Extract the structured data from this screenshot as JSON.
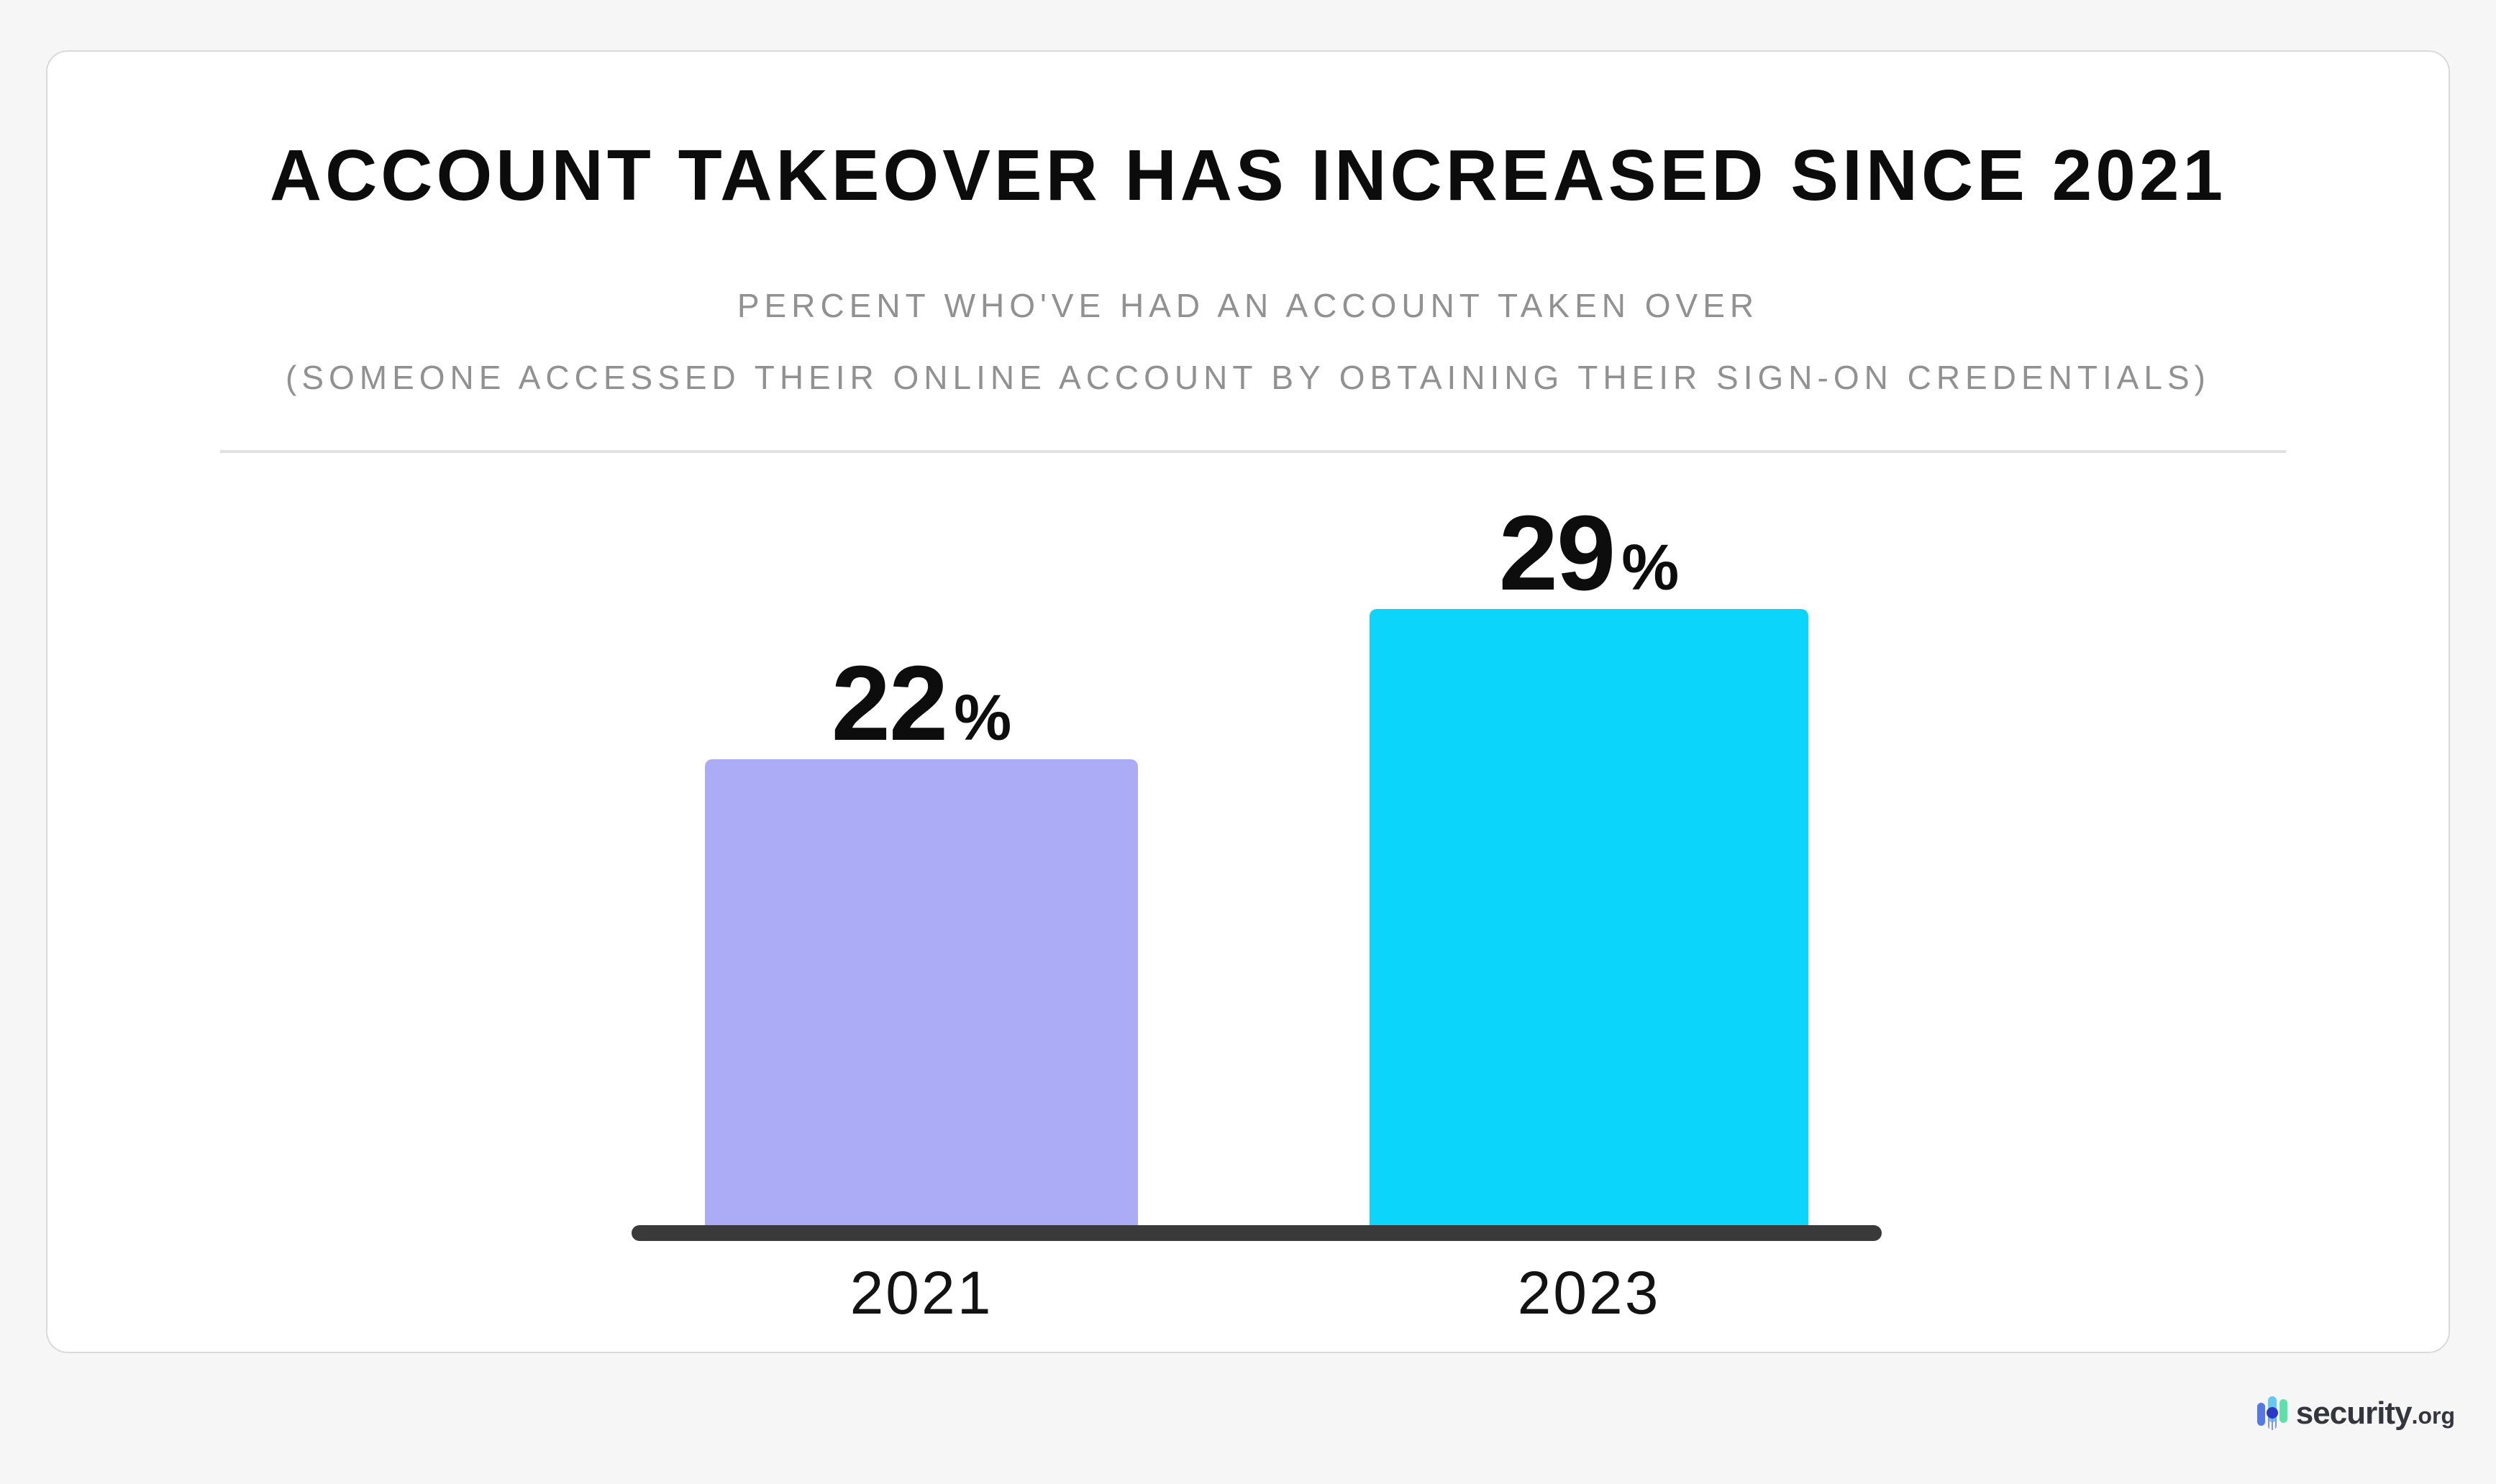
{
  "chart_data": {
    "type": "bar",
    "title": "ACCOUNT TAKEOVER HAS INCREASED SINCE 2021",
    "subtitle_line1": "PERCENT WHO'VE HAD AN ACCOUNT TAKEN OVER",
    "subtitle_line2": "(SOMEONE ACCESSED THEIR ONLINE ACCOUNT BY OBTAINING THEIR SIGN-ON CREDENTIALS)",
    "categories": [
      "2021",
      "2023"
    ],
    "values": [
      22,
      29
    ],
    "value_suffix": "%",
    "bar_colors": [
      "#acabf6",
      "#0bd5fa"
    ],
    "axis_line_color": "#3a3a3a",
    "ylim": [
      0,
      30
    ],
    "grid": false,
    "legend": false
  },
  "branding": {
    "logo_name": "security.org",
    "logo_text": "security",
    "logo_suffix": ".org",
    "icon_colors": {
      "left_bar": "#5577e8",
      "middle_bar": "#65c8f0",
      "right_bar": "#5fe0ab",
      "dot": "#2938c8"
    }
  }
}
